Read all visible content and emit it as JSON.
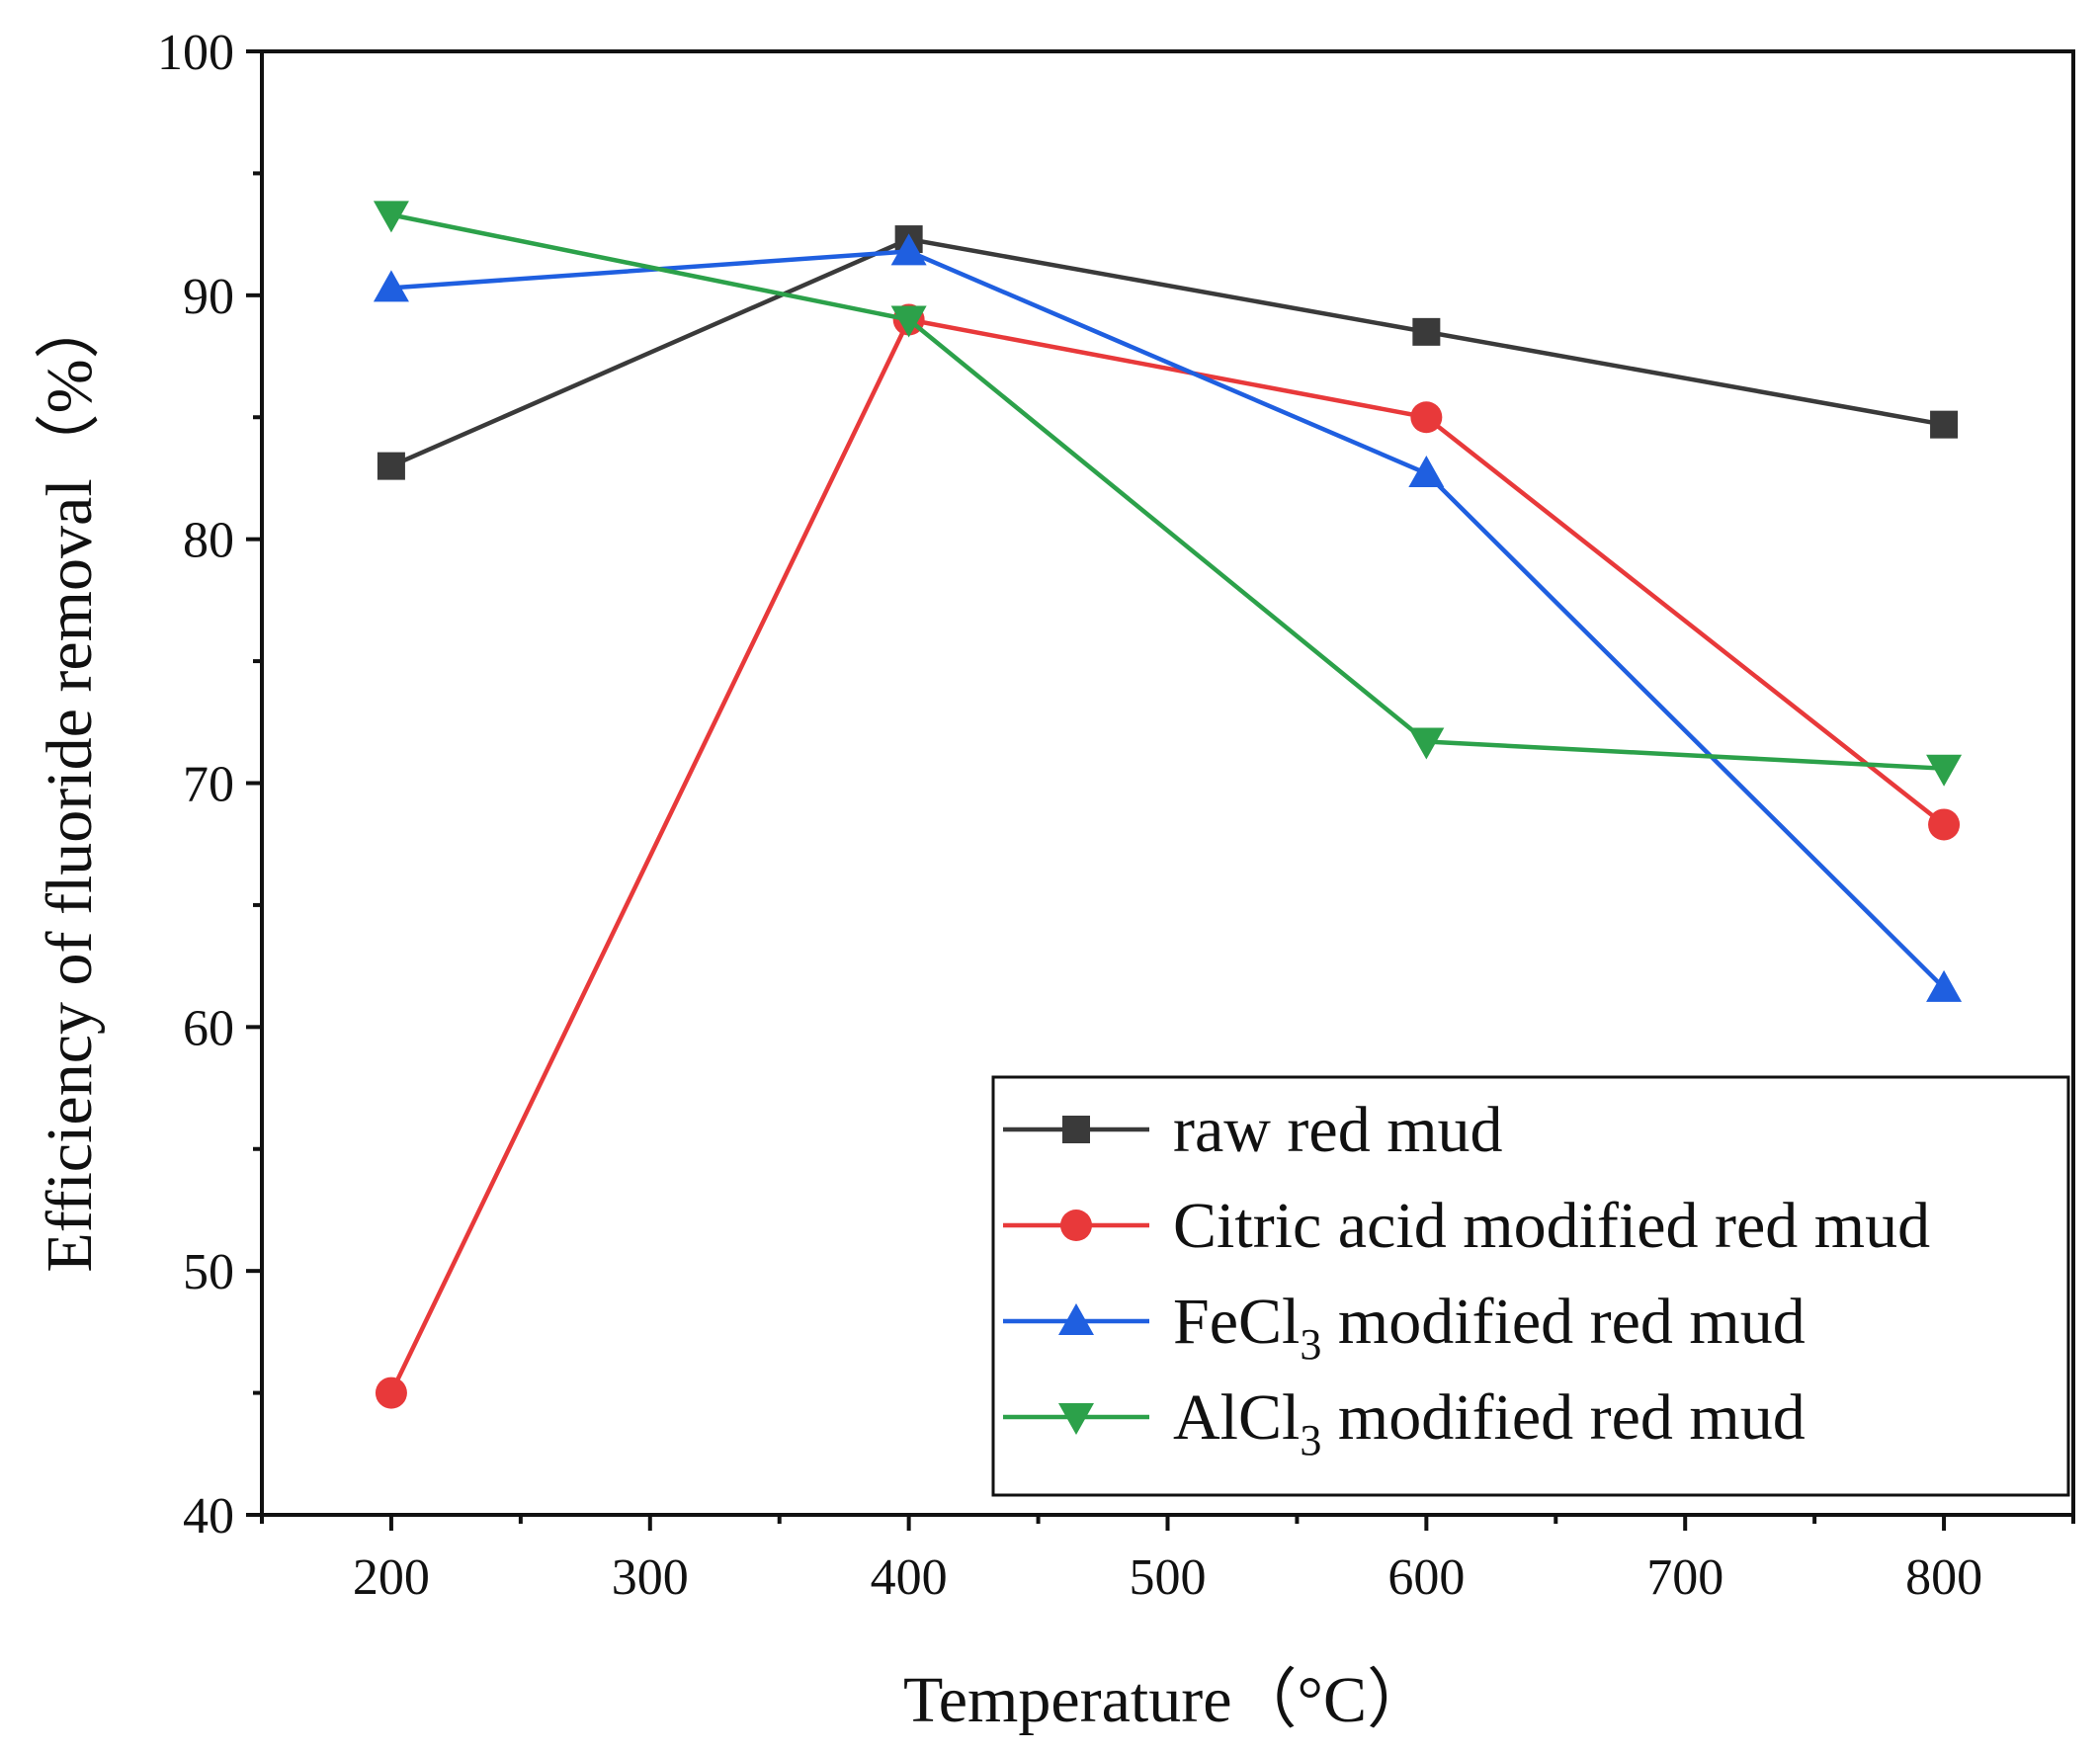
{
  "chart_data": {
    "type": "line",
    "title": "",
    "xlabel": "Temperature（°C）",
    "ylabel": "Efficiency of fluoride removal（%）",
    "xlim": [
      150,
      850
    ],
    "ylim": [
      40,
      100
    ],
    "x": [
      200,
      400,
      600,
      800
    ],
    "xticks": [
      200,
      300,
      400,
      500,
      600,
      700,
      800
    ],
    "yticks": [
      40,
      50,
      60,
      70,
      80,
      90,
      100
    ],
    "xtick_labels": [
      "200",
      "300",
      "400",
      "500",
      "600",
      "700",
      "800"
    ],
    "ytick_labels": [
      "40",
      "50",
      "60",
      "70",
      "80",
      "90",
      "100"
    ],
    "grid": false,
    "legend_position": "bottom-right",
    "series": [
      {
        "name": "raw red mud",
        "legend": {
          "pre": " raw red mud",
          "sub": "",
          "post": ""
        },
        "marker": "square",
        "color": "#3a3a3a",
        "values": [
          83.0,
          92.3,
          88.5,
          84.7
        ]
      },
      {
        "name": "Citric acid modified red mud",
        "legend": {
          "pre": "Citric acid modified red mud",
          "sub": "",
          "post": ""
        },
        "marker": "circle",
        "color": "#e8393a",
        "values": [
          45.0,
          89.0,
          85.0,
          68.3
        ]
      },
      {
        "name": "FeCl3 modified red mud",
        "legend": {
          "pre": "FeCl",
          "sub": "3",
          "post": " modified red mud"
        },
        "marker": "triangle-up",
        "color": "#1f5fe0",
        "values": [
          90.3,
          91.8,
          82.7,
          61.6
        ]
      },
      {
        "name": "AlCl3 modified red mud",
        "legend": {
          "pre": "AlCl",
          "sub": "3",
          "post": " modified red mud"
        },
        "marker": "triangle-down",
        "color": "#2ca14a",
        "values": [
          93.3,
          89.0,
          71.7,
          70.6
        ]
      }
    ]
  }
}
